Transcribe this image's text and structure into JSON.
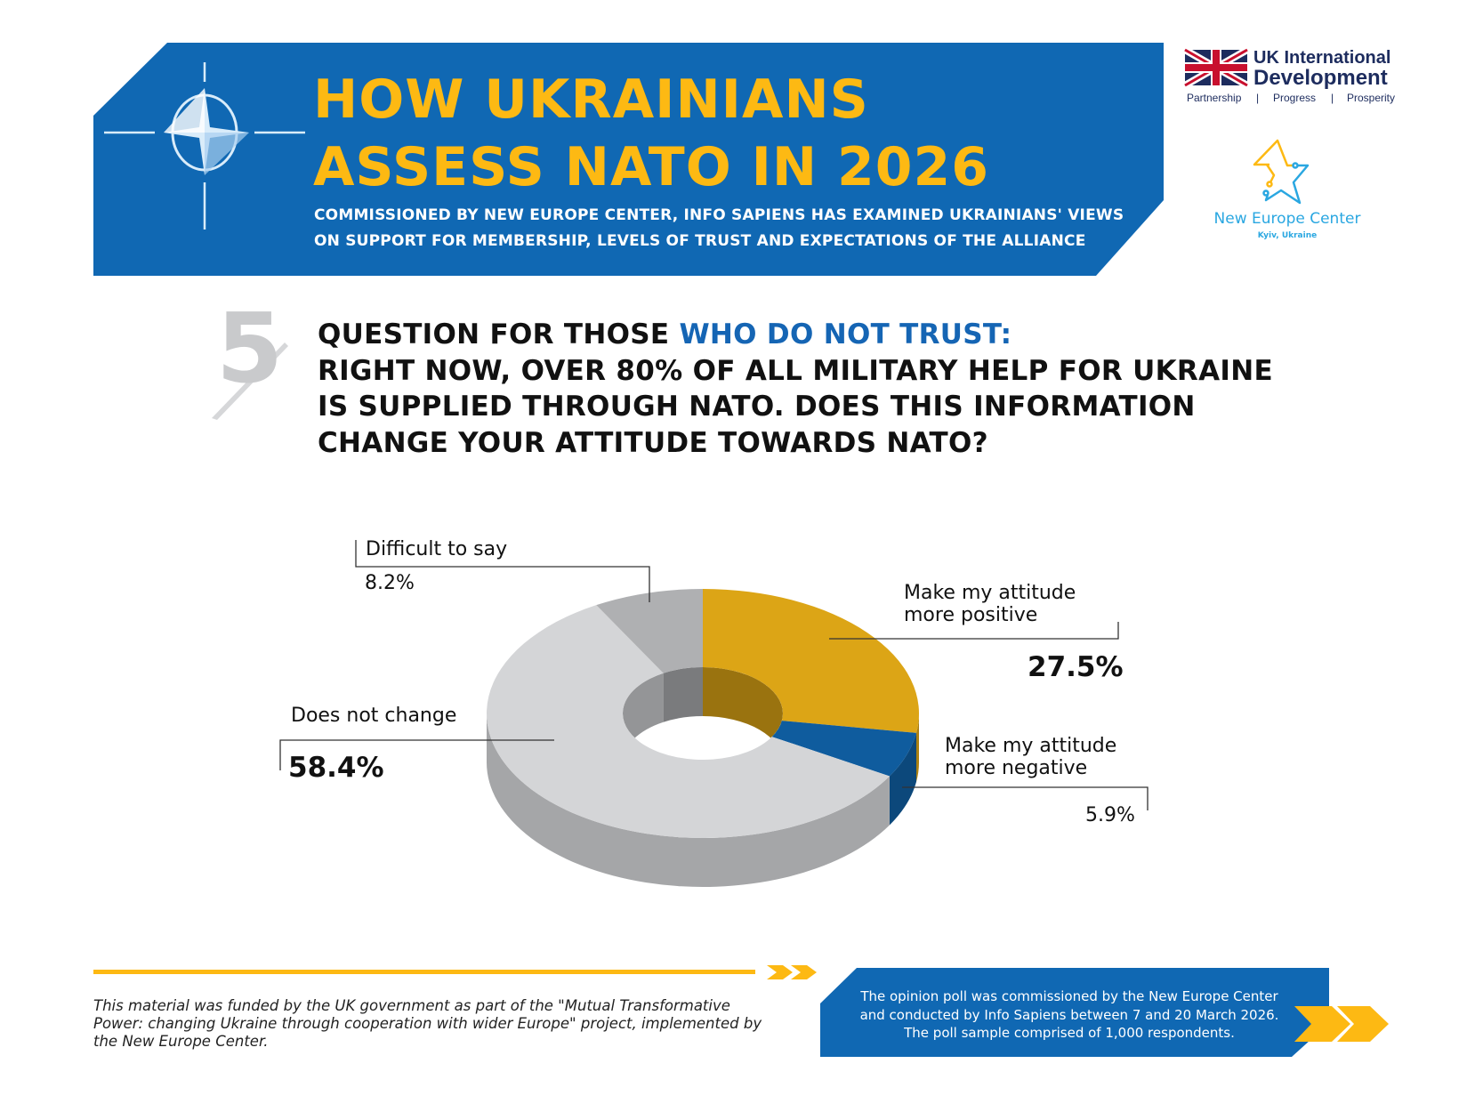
{
  "header": {
    "title_line1": "HOW UKRAINIANS",
    "title_line2": "ASSESS NATO IN 2026",
    "subtitle_line1": "COMMISSIONED BY NEW EUROPE CENTER, INFO SAPIENS HAS EXAMINED UKRAINIANS' VIEWS",
    "subtitle_line2": "ON SUPPORT FOR MEMBERSHIP, LEVELS OF TRUST AND EXPECTATIONS OF THE ALLIANCE",
    "emblem_icon": "nato-compass-star-icon",
    "band_color": "#1068B3",
    "title_color": "#FDB913"
  },
  "logos": {
    "uk": {
      "line1": "UK International",
      "line2": "Development",
      "tagline": [
        "Partnership",
        "|",
        "Progress",
        "|",
        "Prosperity"
      ],
      "flag_icon": "union-jack-flag-icon"
    },
    "nec": {
      "name": "New Europe Center",
      "city": "Kyiv, Ukraine",
      "star_icon": "circuit-star-icon"
    }
  },
  "question": {
    "number": "5",
    "prefix": "QUESTION FOR THOSE ",
    "highlight": "WHO DO NOT TRUST:",
    "line2": "RIGHT NOW, OVER 80% OF ALL MILITARY HELP FOR UKRAINE",
    "line3": "IS SUPPLIED THROUGH NATO. DOES THIS INFORMATION",
    "line4": "CHANGE YOUR ATTITUDE TOWARDS NATO?",
    "highlight_color": "#1565B4"
  },
  "chart_data": {
    "type": "pie",
    "style": "3d-donut",
    "title": "",
    "unit": "%",
    "slices": [
      {
        "label": "Make my attitude more positive",
        "label_lines": [
          "Make my attitude",
          "more positive"
        ],
        "value": 27.5,
        "value_label": "27.5%",
        "color": "#DCA516"
      },
      {
        "label": "Make my attitude more negative",
        "label_lines": [
          "Make my attitude",
          "more negative"
        ],
        "value": 5.9,
        "value_label": "5.9%",
        "color": "#0F5C9E"
      },
      {
        "label": "Does not change",
        "label_lines": [
          "Does not change"
        ],
        "value": 58.4,
        "value_label": "58.4%",
        "color": "#D4D5D7"
      },
      {
        "label": "Difficult to say",
        "label_lines": [
          "Difficult to say"
        ],
        "value": 8.2,
        "value_label": "8.2%",
        "color": "#AFB0B2"
      }
    ],
    "start_angle": "top",
    "direction": "clockwise"
  },
  "footer": {
    "note": "This material was funded by the UK government as part of the \"Mutual Transformative Power: changing Ukraine through cooperation with wider Europe\" project, implemented by the New Europe Center.",
    "poll_line1": "The opinion poll was commissioned by the New Europe Center",
    "poll_line2": "and conducted by Info Sapiens between 7 and 20 March 2026.",
    "poll_line3": "The poll sample comprised of 1,000 respondents.",
    "accent_color": "#FDB913",
    "box_color": "#1068B3"
  }
}
